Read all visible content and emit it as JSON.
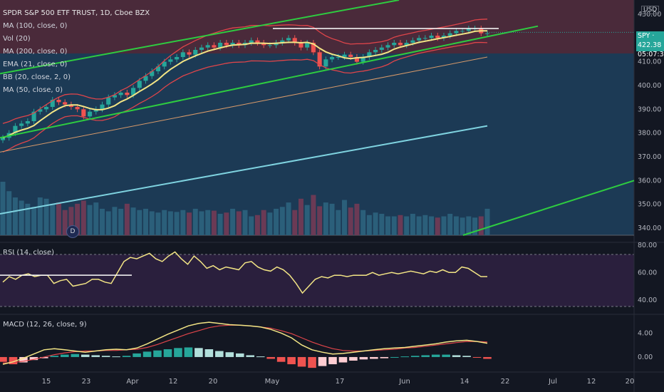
{
  "header": {
    "title": "SPDR S&P 500 ETF TRUST, 1D, Cboe BZX",
    "indicators": [
      "MA (100, close, 0)",
      "Vol (20)",
      "MA (200, close, 0)",
      "EMA (21, close, 0)",
      "BB (20, close, 2, 0)",
      "MA (50, close, 0)"
    ]
  },
  "currency": "USD",
  "price_tag": {
    "symbol": "SPY",
    "price": "422.38",
    "countdown": "05:07:39"
  },
  "event_marker": "D",
  "rsi_label": "RSI (14, close)",
  "macd_label": "MACD (12, 26, close, 9)",
  "colors": {
    "up": "#26a69a",
    "down": "#ef5350",
    "trend": "#2ecc40",
    "ma200": "#7fd3e0",
    "ema": "#f3e585",
    "bb": "#e0454a",
    "ma50": "#d89a6a"
  },
  "chart_data": [
    {
      "type": "candlestick",
      "pane": "price",
      "x_ticks": [
        "15",
        "23",
        "Apr",
        "12",
        "20",
        "May",
        "17",
        "Jun",
        "14",
        "22",
        "Jul",
        "12",
        "20"
      ],
      "y_ticks": [
        340,
        350,
        360,
        370,
        380,
        390,
        400,
        410,
        420,
        430
      ],
      "ylim": [
        337,
        436
      ],
      "last_price": 422.38,
      "close": [
        378,
        380,
        383,
        384,
        385,
        389,
        390,
        391,
        394,
        393,
        392,
        391,
        390,
        387,
        389,
        390,
        392,
        395,
        396,
        397,
        396,
        399,
        402,
        404,
        406,
        408,
        410,
        411,
        412,
        414,
        413,
        415,
        416,
        417,
        416,
        418,
        417,
        418,
        417,
        418,
        419,
        418,
        417,
        417,
        418,
        419,
        420,
        418,
        416,
        418,
        414,
        408,
        411,
        412,
        412,
        413,
        412,
        410,
        412,
        414,
        415,
        416,
        417,
        418,
        417,
        418,
        419,
        420,
        420,
        421,
        420,
        421,
        422,
        423,
        423,
        424,
        424,
        422,
        422
      ],
      "volume": [
        85,
        70,
        60,
        55,
        50,
        45,
        60,
        58,
        50,
        52,
        40,
        45,
        50,
        55,
        48,
        52,
        42,
        38,
        45,
        42,
        50,
        44,
        40,
        42,
        38,
        36,
        40,
        38,
        37,
        40,
        36,
        42,
        38,
        40,
        39,
        34,
        36,
        42,
        38,
        40,
        30,
        32,
        40,
        36,
        42,
        45,
        52,
        40,
        58,
        48,
        64,
        46,
        52,
        50,
        40,
        56,
        44,
        50,
        40,
        32,
        36,
        34,
        30,
        30,
        32,
        30,
        34,
        30,
        32,
        30,
        28,
        30,
        34,
        30,
        28,
        30,
        28,
        30,
        42
      ],
      "series": [
        {
          "name": "MA (200, close, 0)",
          "values": [
            346,
            383
          ]
        },
        {
          "name": "MA (50, close, 0)",
          "values": [
            372,
            412
          ]
        }
      ]
    },
    {
      "type": "line",
      "pane": "RSI (14, close)",
      "y_ticks": [
        40,
        60,
        80
      ],
      "ylim": [
        30,
        82
      ],
      "values": [
        53,
        57,
        55,
        58,
        59,
        57,
        58,
        58,
        52,
        54,
        55,
        50,
        51,
        52,
        55,
        55,
        53,
        52,
        60,
        68,
        71,
        70,
        72,
        74,
        70,
        68,
        72,
        75,
        70,
        66,
        72,
        68,
        63,
        65,
        62,
        64,
        63,
        62,
        67,
        68,
        64,
        62,
        61,
        64,
        62,
        58,
        52,
        45,
        50,
        55,
        57,
        56,
        58,
        58,
        57,
        58,
        58,
        58,
        60,
        58,
        59,
        60,
        59,
        60,
        61,
        60,
        59,
        61,
        60,
        62,
        60,
        60,
        64,
        63,
        60,
        57,
        57
      ]
    },
    {
      "type": "line",
      "pane": "MACD (12, 26, close, 9)",
      "y_ticks": [
        0,
        4
      ],
      "ylim": [
        -2.5,
        7
      ],
      "series": [
        {
          "name": "MACD",
          "values": [
            -1.2,
            -0.8,
            -0.2,
            0.5,
            1.2,
            1.4,
            1.2,
            1.0,
            0.8,
            1.0,
            1.2,
            1.3,
            1.2,
            1.5,
            2.2,
            3.0,
            3.8,
            4.5,
            5.2,
            5.6,
            5.8,
            5.6,
            5.4,
            5.3,
            5.2,
            5.0,
            4.6,
            4.0,
            3.2,
            2.0,
            1.2,
            0.8,
            0.5,
            0.6,
            0.8,
            1.0,
            1.2,
            1.4,
            1.5,
            1.6,
            1.8,
            2.0,
            2.2,
            2.5,
            2.7,
            2.8,
            2.6,
            2.3
          ]
        },
        {
          "name": "Signal",
          "values": [
            -1.0,
            -0.9,
            -0.7,
            -0.4,
            0.0,
            0.4,
            0.7,
            0.9,
            1.0,
            1.0,
            1.1,
            1.1,
            1.2,
            1.3,
            1.6,
            2.1,
            2.7,
            3.3,
            3.9,
            4.4,
            4.9,
            5.2,
            5.3,
            5.3,
            5.2,
            5.0,
            4.8,
            4.4,
            3.9,
            3.2,
            2.5,
            1.9,
            1.4,
            1.1,
            1.0,
            1.0,
            1.1,
            1.2,
            1.3,
            1.5,
            1.6,
            1.8,
            2.0,
            2.2,
            2.4,
            2.6,
            2.6,
            2.5
          ]
        }
      ],
      "histogram": [
        -0.8,
        -1.2,
        -0.9,
        -0.5,
        -0.2,
        0.2,
        0.4,
        0.5,
        0.4,
        0.3,
        0.2,
        0.1,
        0.2,
        0.6,
        0.9,
        1.1,
        1.3,
        1.5,
        1.6,
        1.5,
        1.3,
        1.0,
        0.8,
        0.6,
        0.3,
        0.1,
        -0.3,
        -0.8,
        -1.2,
        -1.6,
        -1.8,
        -1.5,
        -1.2,
        -0.9,
        -0.6,
        -0.4,
        -0.3,
        -0.2,
        0.0,
        0.1,
        0.2,
        0.3,
        0.4,
        0.4,
        0.3,
        0.2,
        -0.1,
        -0.3
      ]
    }
  ]
}
